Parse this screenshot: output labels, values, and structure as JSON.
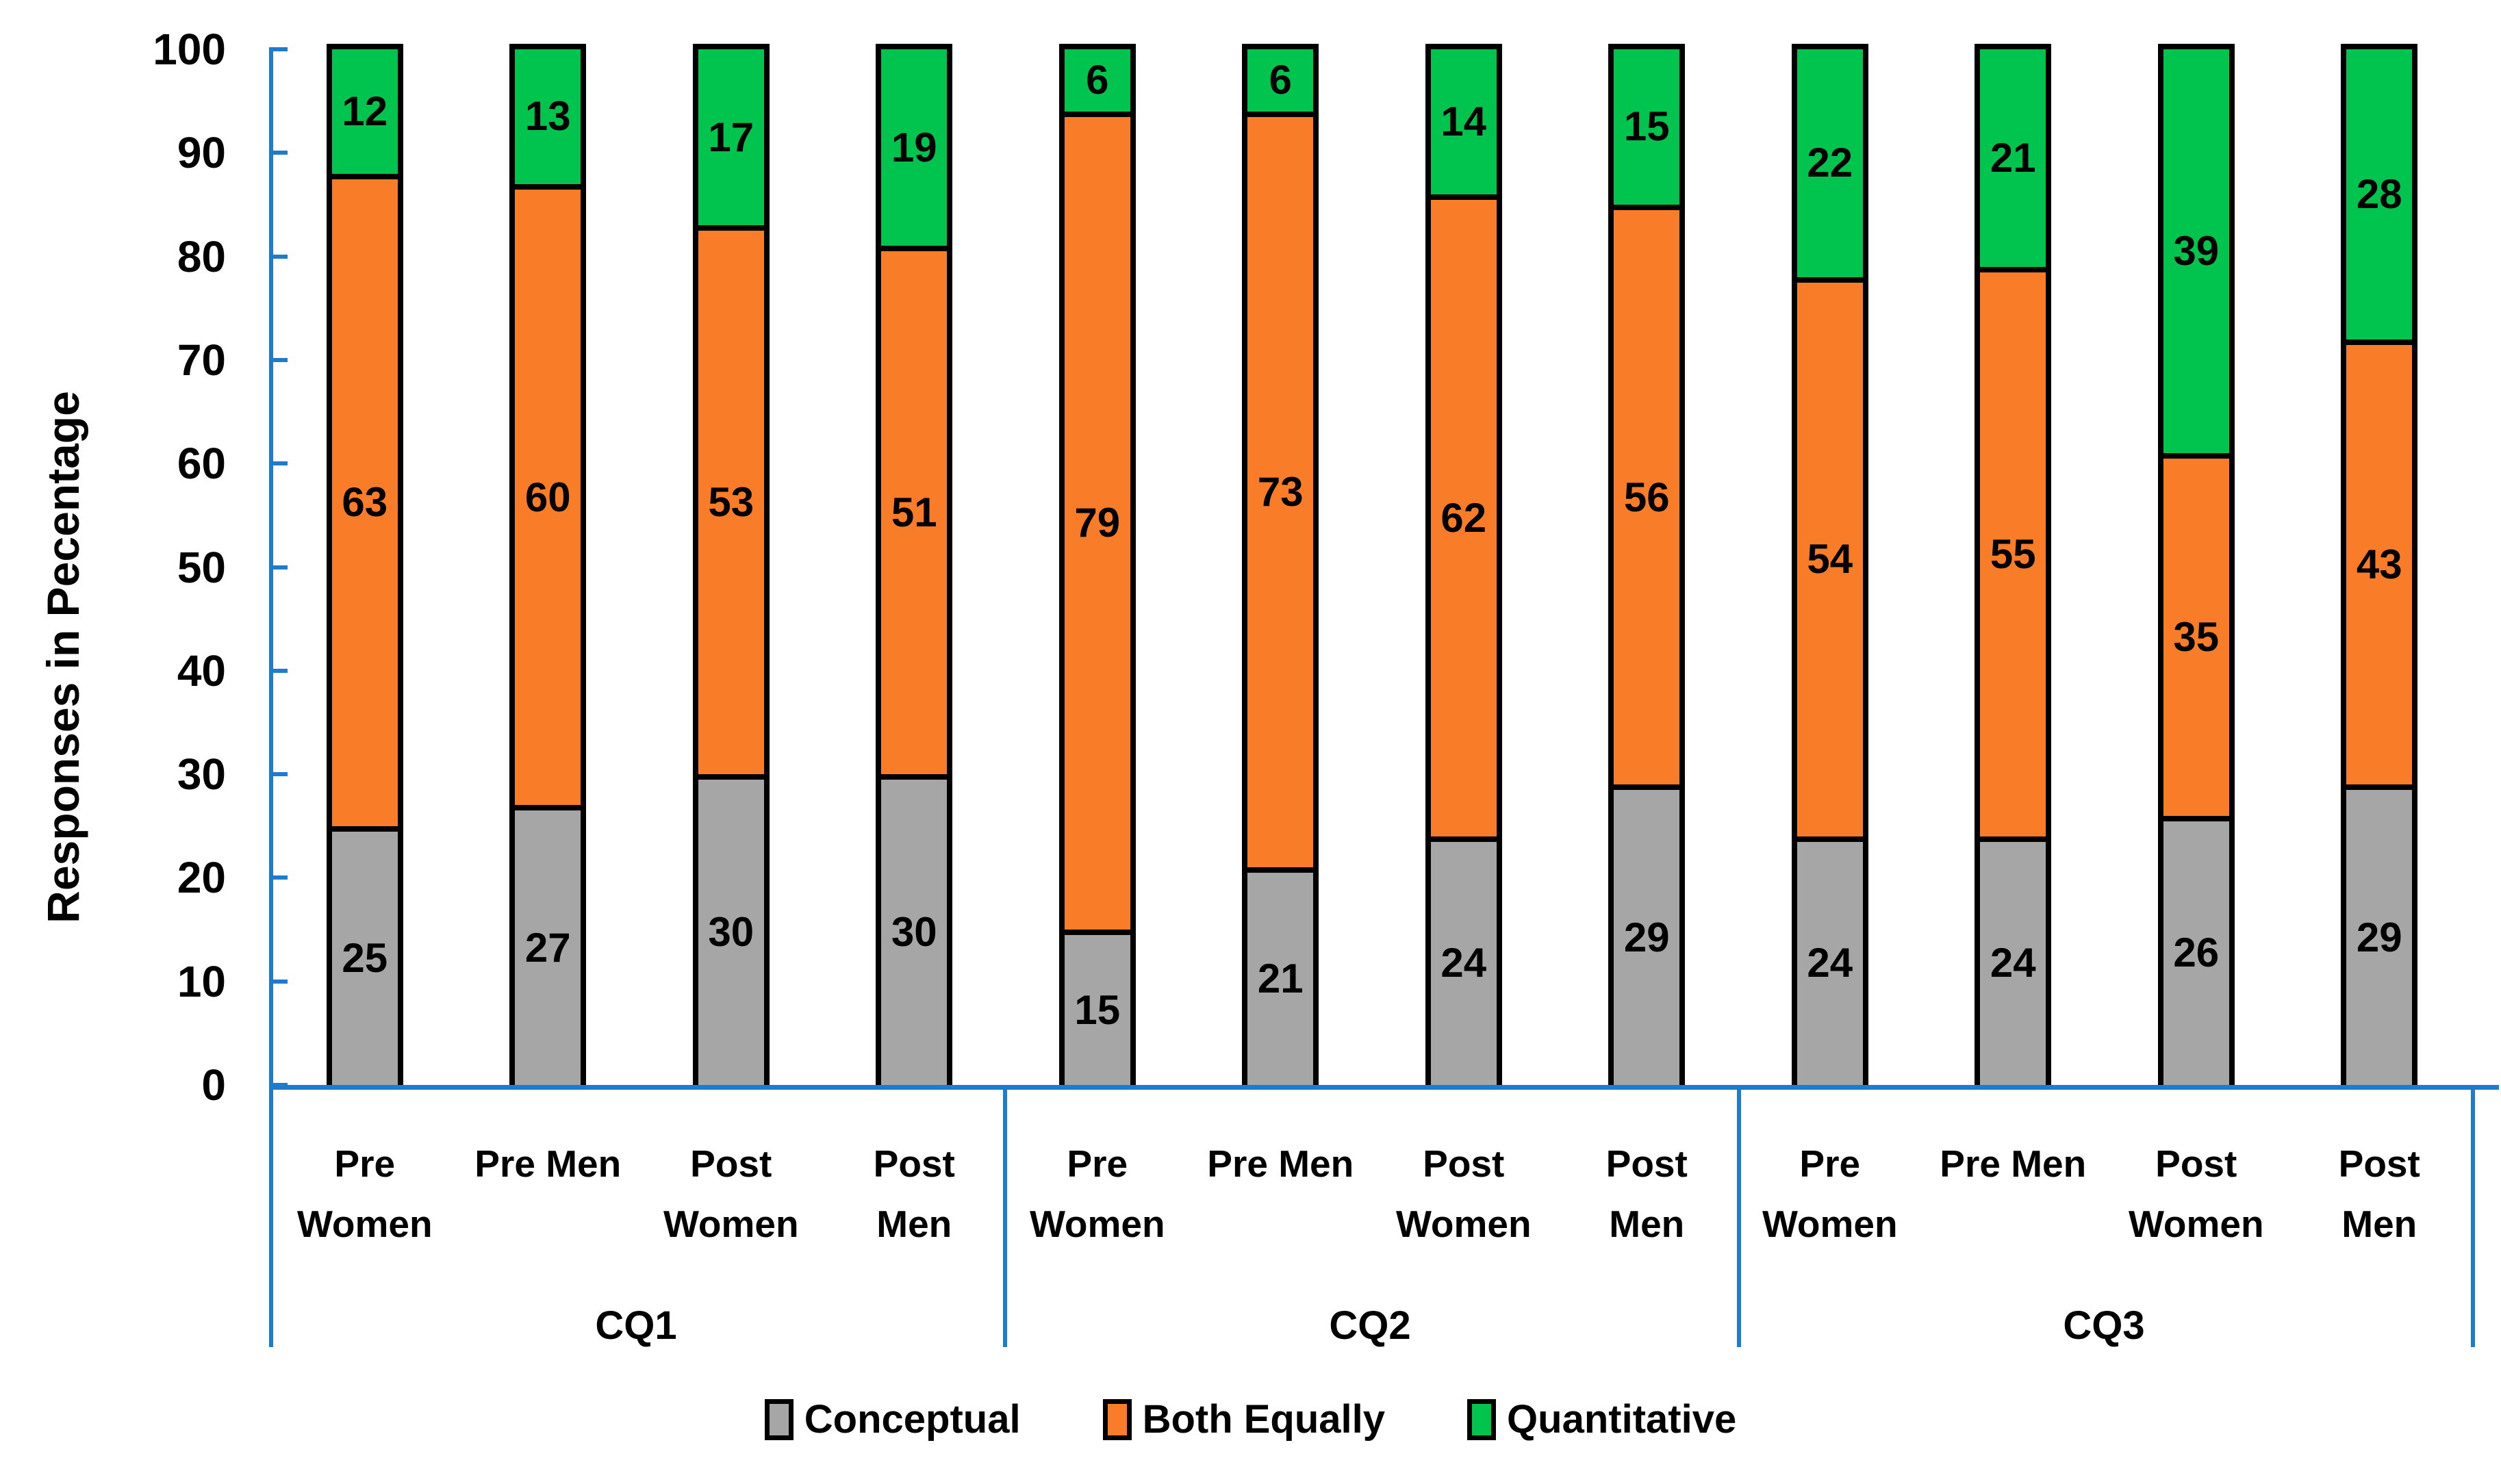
{
  "chart_data": {
    "type": "bar",
    "stacked": true,
    "ylabel": "Responses in Pecentage",
    "ylim": [
      0,
      100
    ],
    "yticks": [
      0,
      10,
      20,
      30,
      40,
      50,
      60,
      70,
      80,
      90,
      100
    ],
    "grid": false,
    "legend_position": "bottom",
    "groups": [
      "CQ1",
      "CQ2",
      "CQ3"
    ],
    "categories": [
      "Pre Women",
      "Pre Men",
      "Post Women",
      "Post Men"
    ],
    "category_label_lines": [
      [
        "Pre",
        "Women"
      ],
      [
        "Pre Men"
      ],
      [
        "Post",
        "Women"
      ],
      [
        "Post",
        "Men"
      ]
    ],
    "series": [
      {
        "name": "Conceptual",
        "color": "#A6A6A6",
        "values": [
          [
            25,
            27,
            30,
            30
          ],
          [
            15,
            21,
            24,
            29
          ],
          [
            24,
            24,
            26,
            29
          ]
        ]
      },
      {
        "name": "Both Equally",
        "color": "#F97D28",
        "values": [
          [
            63,
            60,
            53,
            51
          ],
          [
            79,
            73,
            62,
            56
          ],
          [
            54,
            55,
            35,
            43
          ]
        ]
      },
      {
        "name": "Quantitative",
        "color": "#00C44E",
        "values": [
          [
            12,
            13,
            17,
            19
          ],
          [
            6,
            6,
            14,
            15
          ],
          [
            22,
            21,
            39,
            28
          ]
        ]
      }
    ],
    "colors": {
      "axis": "#1F7CCB",
      "bar_border": "#000000",
      "text": "#000000"
    }
  }
}
